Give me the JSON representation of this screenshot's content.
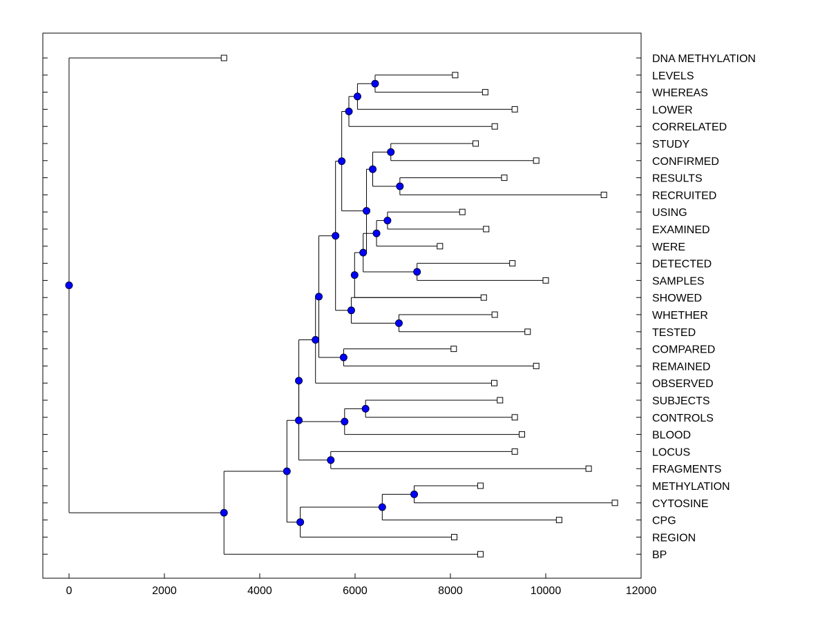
{
  "chart_data": {
    "type": "dendrogram",
    "title": "",
    "xlabel": "",
    "ylabel": "",
    "xlim": [
      -550,
      12000
    ],
    "x_ticks": [
      0,
      2000,
      4000,
      6000,
      8000,
      10000,
      12000
    ],
    "x_tick_labels": [
      "0",
      "2000",
      "4000",
      "6000",
      "8000",
      "10000",
      "12000"
    ],
    "grid": false,
    "node_color": "#0000ff",
    "line_color": "#000000",
    "leaves": [
      {
        "label": "DNA METHYLATION",
        "x": 3250
      },
      {
        "label": "LEVELS",
        "x": 8100
      },
      {
        "label": "WHEREAS",
        "x": 8730
      },
      {
        "label": "LOWER",
        "x": 9350
      },
      {
        "label": "CORRELATED",
        "x": 8930
      },
      {
        "label": "STUDY",
        "x": 8530
      },
      {
        "label": "CONFIRMED",
        "x": 9800
      },
      {
        "label": "RESULTS",
        "x": 9130
      },
      {
        "label": "RECRUITED",
        "x": 11220
      },
      {
        "label": "USING",
        "x": 8250
      },
      {
        "label": "EXAMINED",
        "x": 8750
      },
      {
        "label": "WERE",
        "x": 7780
      },
      {
        "label": "DETECTED",
        "x": 9300
      },
      {
        "label": "SAMPLES",
        "x": 10000
      },
      {
        "label": "SHOWED",
        "x": 8700
      },
      {
        "label": "WHETHER",
        "x": 8930
      },
      {
        "label": "TESTED",
        "x": 9620
      },
      {
        "label": "COMPARED",
        "x": 8070
      },
      {
        "label": "REMAINED",
        "x": 9800
      },
      {
        "label": "OBSERVED",
        "x": 8920
      },
      {
        "label": "SUBJECTS",
        "x": 9040
      },
      {
        "label": "CONTROLS",
        "x": 9350
      },
      {
        "label": "BLOOD",
        "x": 9500
      },
      {
        "label": "LOCUS",
        "x": 9350
      },
      {
        "label": "FRAGMENTS",
        "x": 10900
      },
      {
        "label": "METHYLATION",
        "x": 8630
      },
      {
        "label": "CYTOSINE",
        "x": 11450
      },
      {
        "label": "CPG",
        "x": 10280
      },
      {
        "label": "REGION",
        "x": 8080
      },
      {
        "label": "BP",
        "x": 8630
      }
    ],
    "merges": [
      {
        "id": "n1",
        "x": 6420,
        "children": [
          1,
          2
        ]
      },
      {
        "id": "n2",
        "x": 6050,
        "children": [
          "n1",
          3
        ]
      },
      {
        "id": "n3",
        "x": 5870,
        "children": [
          "n2",
          4
        ]
      },
      {
        "id": "n4",
        "x": 6750,
        "children": [
          5,
          6
        ]
      },
      {
        "id": "n5",
        "x": 6940,
        "children": [
          7,
          8
        ]
      },
      {
        "id": "n6",
        "x": 6370,
        "children": [
          "n4",
          "n5"
        ]
      },
      {
        "id": "n7",
        "x": 6680,
        "children": [
          9,
          10
        ]
      },
      {
        "id": "n8",
        "x": 6450,
        "children": [
          "n7",
          11
        ]
      },
      {
        "id": "n9",
        "x": 7300,
        "children": [
          12,
          13
        ]
      },
      {
        "id": "n10",
        "x": 6170,
        "children": [
          "n8",
          "n9"
        ]
      },
      {
        "id": "n11",
        "x": 6240,
        "children": [
          "n6",
          "n10"
        ]
      },
      {
        "id": "n12",
        "x": 5720,
        "children": [
          "n3",
          "n11"
        ]
      },
      {
        "id": "n13",
        "x": 6920,
        "children": [
          15,
          16
        ]
      },
      {
        "id": "n14",
        "x": 5990,
        "children": [
          "n10",
          14
        ]
      },
      {
        "id": "n15",
        "x": 5920,
        "children": [
          14,
          "n13"
        ]
      },
      {
        "id": "n16",
        "x": 5590,
        "children": [
          "n12",
          "n15"
        ]
      },
      {
        "id": "n17",
        "x": 5760,
        "children": [
          17,
          18
        ]
      },
      {
        "id": "n18",
        "x": 5240,
        "children": [
          "n16",
          "n17"
        ]
      },
      {
        "id": "n19",
        "x": 5170,
        "children": [
          "n18",
          19
        ]
      },
      {
        "id": "n20",
        "x": 6220,
        "children": [
          20,
          21
        ]
      },
      {
        "id": "n21",
        "x": 5780,
        "children": [
          "n20",
          22
        ]
      },
      {
        "id": "n22",
        "x": 4820,
        "children": [
          "n19",
          "n21"
        ]
      },
      {
        "id": "n23",
        "x": 5490,
        "children": [
          23,
          24
        ]
      },
      {
        "id": "n24",
        "x": 4820,
        "children": [
          "n22",
          "n23"
        ]
      },
      {
        "id": "n25",
        "x": 7240,
        "children": [
          25,
          26
        ]
      },
      {
        "id": "n26",
        "x": 6570,
        "children": [
          "n25",
          27
        ]
      },
      {
        "id": "n27",
        "x": 4850,
        "children": [
          "n26",
          28
        ]
      },
      {
        "id": "n28",
        "x": 4570,
        "children": [
          "n24",
          "n27"
        ]
      },
      {
        "id": "n29",
        "x": 3250,
        "children": [
          "n28",
          29
        ]
      },
      {
        "id": "n30",
        "x": 0,
        "children": [
          0,
          "n29"
        ]
      }
    ]
  }
}
